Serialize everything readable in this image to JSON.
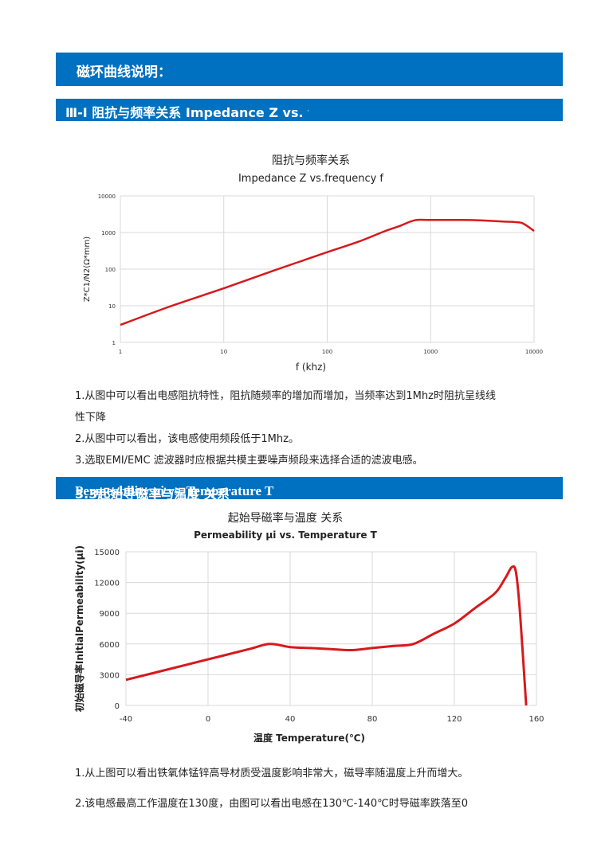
{
  "section_header": "磁环曲线说明：",
  "section1": {
    "header": "Ⅲ-Ⅰ 阻抗与频率关系  Impedance Z vs. frequency f",
    "chart_title": "阻抗与频率关系",
    "chart_subtitle": "Impedance Z vs.frequency f",
    "notes": [
      "1.从图中可以看出电感阻抗特性，阻抗随频率的增加而增加，当频率达到1Mhz时阻抗呈线线",
      "性下降",
      "2.从图中可以看出，该电感使用频段低于1Mhz。",
      "3.选取EMI/EMC 滤波器时应根据共模主要噪声频段来选择合适的滤波电感。"
    ]
  },
  "section2": {
    "header_cn": "3.3起始导磁率与温度 关系",
    "header_en": "Permeability μi vs. Temperature T",
    "notes": [
      "1.从上图可以看出铁氧体锰锌高导材质受温度影响非常大，磁导率随温度上升而增大。",
      "2.该电感最高工作温度在130度，由图可以看出电感在130℃-140℃时导磁率跌落至0"
    ]
  },
  "colors": {
    "accent": "#0070c0",
    "curve": "#d7191c"
  },
  "chart_data": [
    {
      "type": "line",
      "title": "阻抗与频率关系",
      "subtitle": "Impedance Z vs.frequency f",
      "xlabel": "f  (khz)",
      "ylabel": "Z*C1/N2(Ω*mm)",
      "x_scale": "log",
      "y_scale": "log",
      "xlim": [
        1,
        10000
      ],
      "ylim": [
        1,
        10000
      ],
      "x_ticks": [
        "1",
        "10",
        "100",
        "1000",
        "10000"
      ],
      "y_ticks": [
        "1",
        "10",
        "100",
        "1000",
        "10000"
      ],
      "grid": true,
      "x": [
        1,
        3,
        10,
        30,
        100,
        200,
        350,
        500,
        700,
        1000,
        2000,
        3000,
        5000,
        7000,
        8000,
        10000
      ],
      "y": [
        3,
        9.5,
        30,
        90,
        290,
        560,
        1050,
        1500,
        2150,
        2200,
        2200,
        2150,
        2000,
        1900,
        1700,
        1100
      ]
    },
    {
      "type": "line",
      "title": "起始导磁率与温度 关系",
      "subtitle": "Permeability μi vs. Temperature T",
      "xlabel": "温度 Temperature(℃)",
      "ylabel": "初始磁导率InitialPermeability(μi)",
      "xlim": [
        -40,
        160
      ],
      "ylim": [
        0,
        15000
      ],
      "x_ticks": [
        "-40",
        "0",
        "40",
        "80",
        "120",
        "160"
      ],
      "y_ticks": [
        "0",
        "3000",
        "6000",
        "9000",
        "12000",
        "15000"
      ],
      "grid": true,
      "x": [
        -40,
        -20,
        0,
        20,
        30,
        40,
        50,
        60,
        70,
        80,
        90,
        100,
        110,
        120,
        130,
        140,
        145,
        148,
        150,
        152,
        155
      ],
      "y": [
        2500,
        3500,
        4500,
        5500,
        6000,
        5700,
        5600,
        5500,
        5400,
        5600,
        5800,
        6000,
        7000,
        8000,
        9500,
        11000,
        12500,
        13500,
        13000,
        9000,
        0
      ]
    }
  ]
}
